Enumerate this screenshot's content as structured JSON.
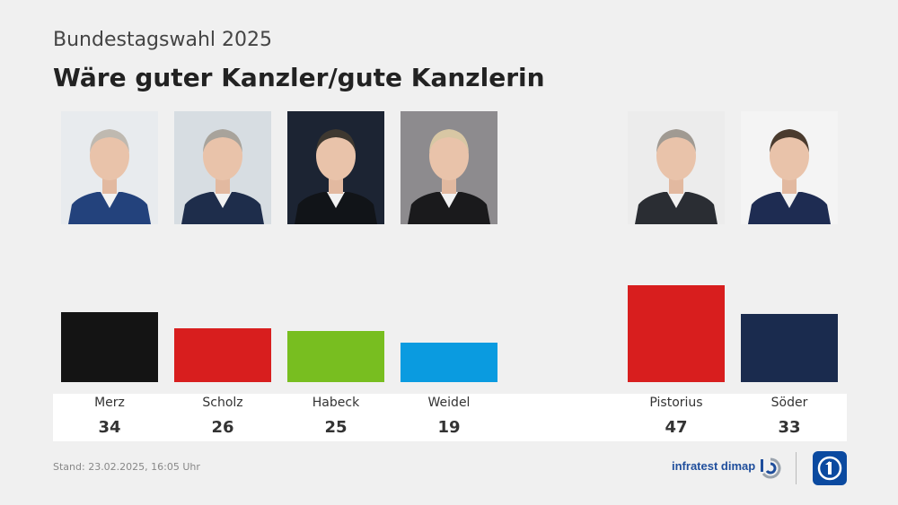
{
  "header": {
    "subtitle": "Bundestagswahl 2025",
    "title": "Wäre guter Kanzler/gute Kanzlerin"
  },
  "chart_data": {
    "type": "bar",
    "title": "Wäre guter Kanzler/gute Kanzlerin",
    "categories": [
      "Merz",
      "Scholz",
      "Habeck",
      "Weidel",
      "Pistorius",
      "Söder"
    ],
    "values": [
      34,
      26,
      25,
      19,
      47,
      33
    ],
    "colors": [
      "#141414",
      "#d81e1e",
      "#78be20",
      "#0a9be0",
      "#d81e1e",
      "#1a2b4e"
    ],
    "ylim": [
      0,
      50
    ],
    "grid": false,
    "legend": "none"
  },
  "candidates": [
    {
      "name": "Merz",
      "value": "34",
      "bar_color": "#141414",
      "photo_bg": "#e8ebee",
      "suit": "#23427c",
      "hair": "#bfb9b0"
    },
    {
      "name": "Scholz",
      "value": "26",
      "bar_color": "#d81e1e",
      "photo_bg": "#d7dde2",
      "suit": "#1e2d4b",
      "hair": "#a8a39b"
    },
    {
      "name": "Habeck",
      "value": "25",
      "bar_color": "#78be20",
      "photo_bg": "#1c2433",
      "suit": "#111418",
      "hair": "#3e3830"
    },
    {
      "name": "Weidel",
      "value": "19",
      "bar_color": "#0a9be0",
      "photo_bg": "#8d8b8e",
      "suit": "#1a1a1c",
      "hair": "#d8c7a4"
    },
    {
      "name": "Pistorius",
      "value": "47",
      "bar_color": "#d81e1e",
      "photo_bg": "#ececec",
      "suit": "#2a2d33",
      "hair": "#a09a92"
    },
    {
      "name": "Söder",
      "value": "33",
      "bar_color": "#1a2b4e",
      "photo_bg": "#f4f4f4",
      "suit": "#1e2c52",
      "hair": "#4a3b2e"
    }
  ],
  "footer": {
    "stand": "Stand:  23.02.2025, 16:05 Uhr",
    "brand": "infratest dimap"
  },
  "colors": {
    "background": "#f0f0f0",
    "panel": "#ffffff",
    "brand_blue": "#1f4e9c",
    "ard_blue": "#0b4aa0"
  }
}
